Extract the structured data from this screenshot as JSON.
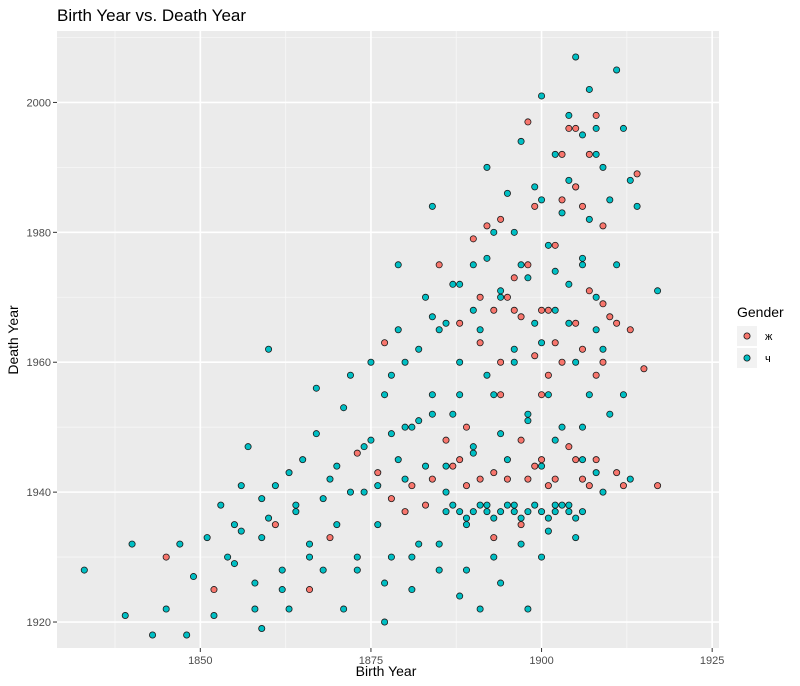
{
  "chart_data": {
    "type": "scatter",
    "title": "Birth Year vs. Death Year",
    "xlabel": "Birth Year",
    "ylabel": "Death Year",
    "xlim": [
      1829,
      1926
    ],
    "ylim": [
      1916,
      2011
    ],
    "x_ticks": [
      1850,
      1875,
      1900,
      1925
    ],
    "y_ticks": [
      1920,
      1940,
      1960,
      1980,
      2000
    ],
    "grid": true,
    "legend": {
      "title": "Gender",
      "placement": "right",
      "entries": [
        {
          "label": "ж",
          "color": "#F8766D"
        },
        {
          "label": "ч",
          "color": "#00BFC4"
        }
      ]
    },
    "series": [
      {
        "name": "ж",
        "color": "#F8766D",
        "points": [
          [
            1845,
            1930
          ],
          [
            1852,
            1925
          ],
          [
            1861,
            1935
          ],
          [
            1866,
            1925
          ],
          [
            1869,
            1933
          ],
          [
            1873,
            1946
          ],
          [
            1876,
            1943
          ],
          [
            1877,
            1963
          ],
          [
            1878,
            1939
          ],
          [
            1880,
            1937
          ],
          [
            1881,
            1941
          ],
          [
            1883,
            1938
          ],
          [
            1884,
            1942
          ],
          [
            1885,
            1975
          ],
          [
            1886,
            1948
          ],
          [
            1887,
            1944
          ],
          [
            1888,
            1966
          ],
          [
            1889,
            1941
          ],
          [
            1889,
            1950
          ],
          [
            1890,
            1979
          ],
          [
            1891,
            1963
          ],
          [
            1891,
            1942
          ],
          [
            1892,
            1981
          ],
          [
            1893,
            1968
          ],
          [
            1893,
            1943
          ],
          [
            1894,
            1982
          ],
          [
            1894,
            1955
          ],
          [
            1895,
            1942
          ],
          [
            1895,
            1970
          ],
          [
            1896,
            1973
          ],
          [
            1897,
            1967
          ],
          [
            1897,
            1935
          ],
          [
            1897,
            1948
          ],
          [
            1898,
            1997
          ],
          [
            1898,
            1942
          ],
          [
            1898,
            1975
          ],
          [
            1899,
            1961
          ],
          [
            1899,
            1984
          ],
          [
            1900,
            1955
          ],
          [
            1900,
            1968
          ],
          [
            1900,
            1945
          ],
          [
            1901,
            1968
          ],
          [
            1901,
            1941
          ],
          [
            1902,
            1978
          ],
          [
            1902,
            1942
          ],
          [
            1903,
            1985
          ],
          [
            1903,
            1960
          ],
          [
            1904,
            1996
          ],
          [
            1904,
            1947
          ],
          [
            1905,
            1987
          ],
          [
            1905,
            1966
          ],
          [
            1905,
            1945
          ],
          [
            1906,
            1984
          ],
          [
            1906,
            1962
          ],
          [
            1907,
            1992
          ],
          [
            1907,
            1971
          ],
          [
            1907,
            1941
          ],
          [
            1908,
            1998
          ],
          [
            1908,
            1958
          ],
          [
            1908,
            1945
          ],
          [
            1909,
            1981
          ],
          [
            1909,
            1969
          ],
          [
            1910,
            1967
          ],
          [
            1912,
            1941
          ],
          [
            1913,
            1965
          ],
          [
            1914,
            1989
          ],
          [
            1915,
            1959
          ],
          [
            1917,
            1941
          ],
          [
            1909,
            1960
          ],
          [
            1911,
            1943
          ],
          [
            1906,
            1942
          ],
          [
            1902,
            1963
          ],
          [
            1896,
            1968
          ],
          [
            1891,
            1970
          ],
          [
            1894,
            1960
          ],
          [
            1899,
            1944
          ],
          [
            1903,
            1992
          ],
          [
            1905,
            1996
          ],
          [
            1911,
            1966
          ],
          [
            1901,
            1958
          ],
          [
            1888,
            1945
          ],
          [
            1893,
            1933
          ]
        ]
      },
      {
        "name": "ч",
        "color": "#00BFC4",
        "points": [
          [
            1833,
            1928
          ],
          [
            1839,
            1921
          ],
          [
            1840,
            1932
          ],
          [
            1843,
            1918
          ],
          [
            1845,
            1922
          ],
          [
            1847,
            1932
          ],
          [
            1848,
            1918
          ],
          [
            1849,
            1927
          ],
          [
            1851,
            1933
          ],
          [
            1852,
            1921
          ],
          [
            1853,
            1938
          ],
          [
            1854,
            1930
          ],
          [
            1855,
            1935
          ],
          [
            1856,
            1941
          ],
          [
            1857,
            1947
          ],
          [
            1858,
            1926
          ],
          [
            1859,
            1933
          ],
          [
            1859,
            1919
          ],
          [
            1860,
            1962
          ],
          [
            1861,
            1941
          ],
          [
            1862,
            1928
          ],
          [
            1863,
            1922
          ],
          [
            1864,
            1938
          ],
          [
            1865,
            1945
          ],
          [
            1866,
            1932
          ],
          [
            1867,
            1956
          ],
          [
            1868,
            1928
          ],
          [
            1869,
            1942
          ],
          [
            1870,
            1935
          ],
          [
            1871,
            1922
          ],
          [
            1872,
            1958
          ],
          [
            1873,
            1930
          ],
          [
            1874,
            1940
          ],
          [
            1875,
            1948
          ],
          [
            1876,
            1935
          ],
          [
            1877,
            1955
          ],
          [
            1877,
            1920
          ],
          [
            1878,
            1930
          ],
          [
            1879,
            1975
          ],
          [
            1879,
            1945
          ],
          [
            1880,
            1960
          ],
          [
            1881,
            1925
          ],
          [
            1881,
            1950
          ],
          [
            1882,
            1932
          ],
          [
            1883,
            1970
          ],
          [
            1883,
            1944
          ],
          [
            1884,
            1984
          ],
          [
            1884,
            1955
          ],
          [
            1885,
            1928
          ],
          [
            1885,
            1965
          ],
          [
            1886,
            1940
          ],
          [
            1887,
            1972
          ],
          [
            1887,
            1952
          ],
          [
            1888,
            1924
          ],
          [
            1888,
            1960
          ],
          [
            1889,
            1935
          ],
          [
            1890,
            1975
          ],
          [
            1890,
            1946
          ],
          [
            1891,
            1922
          ],
          [
            1891,
            1965
          ],
          [
            1892,
            1938
          ],
          [
            1892,
            1990
          ],
          [
            1893,
            1955
          ],
          [
            1893,
            1980
          ],
          [
            1894,
            1926
          ],
          [
            1894,
            1970
          ],
          [
            1895,
            1945
          ],
          [
            1895,
            1986
          ],
          [
            1896,
            1962
          ],
          [
            1896,
            1938
          ],
          [
            1897,
            1994
          ],
          [
            1897,
            1975
          ],
          [
            1898,
            1952
          ],
          [
            1898,
            1922
          ],
          [
            1899,
            1987
          ],
          [
            1899,
            1966
          ],
          [
            1900,
            2001
          ],
          [
            1900,
            1944
          ],
          [
            1900,
            1930
          ],
          [
            1901,
            1978
          ],
          [
            1901,
            1955
          ],
          [
            1902,
            1992
          ],
          [
            1902,
            1968
          ],
          [
            1902,
            1938
          ],
          [
            1903,
            1983
          ],
          [
            1903,
            1950
          ],
          [
            1904,
            1998
          ],
          [
            1904,
            1972
          ],
          [
            1904,
            1938
          ],
          [
            1905,
            2007
          ],
          [
            1905,
            1987
          ],
          [
            1905,
            1960
          ],
          [
            1906,
            1995
          ],
          [
            1906,
            1975
          ],
          [
            1906,
            1945
          ],
          [
            1907,
            2002
          ],
          [
            1907,
            1982
          ],
          [
            1907,
            1955
          ],
          [
            1908,
            1996
          ],
          [
            1908,
            1970
          ],
          [
            1908,
            1943
          ],
          [
            1909,
            1990
          ],
          [
            1909,
            1962
          ],
          [
            1910,
            1985
          ],
          [
            1910,
            1952
          ],
          [
            1911,
            2005
          ],
          [
            1911,
            1975
          ],
          [
            1912,
            1996
          ],
          [
            1912,
            1955
          ],
          [
            1913,
            1988
          ],
          [
            1913,
            1942
          ],
          [
            1914,
            1984
          ],
          [
            1917,
            1971
          ],
          [
            1886,
            1937
          ],
          [
            1888,
            1937
          ],
          [
            1890,
            1937
          ],
          [
            1892,
            1937
          ],
          [
            1894,
            1937
          ],
          [
            1896,
            1937
          ],
          [
            1898,
            1937
          ],
          [
            1900,
            1937
          ],
          [
            1902,
            1937
          ],
          [
            1904,
            1937
          ],
          [
            1906,
            1937
          ],
          [
            1887,
            1938
          ],
          [
            1891,
            1938
          ],
          [
            1895,
            1938
          ],
          [
            1899,
            1938
          ],
          [
            1903,
            1938
          ],
          [
            1889,
            1936
          ],
          [
            1893,
            1936
          ],
          [
            1897,
            1936
          ],
          [
            1901,
            1936
          ],
          [
            1905,
            1936
          ],
          [
            1880,
            1942
          ],
          [
            1876,
            1941
          ],
          [
            1872,
            1940
          ],
          [
            1868,
            1939
          ],
          [
            1864,
            1937
          ],
          [
            1860,
            1936
          ],
          [
            1856,
            1934
          ],
          [
            1878,
            1958
          ],
          [
            1882,
            1962
          ],
          [
            1886,
            1966
          ],
          [
            1890,
            1968
          ],
          [
            1894,
            1971
          ],
          [
            1898,
            1973
          ],
          [
            1902,
            1974
          ],
          [
            1906,
            1976
          ],
          [
            1880,
            1950
          ],
          [
            1884,
            1952
          ],
          [
            1888,
            1955
          ],
          [
            1892,
            1958
          ],
          [
            1896,
            1960
          ],
          [
            1900,
            1963
          ],
          [
            1904,
            1966
          ],
          [
            1908,
            1965
          ],
          [
            1870,
            1944
          ],
          [
            1874,
            1947
          ],
          [
            1878,
            1949
          ],
          [
            1882,
            1951
          ],
          [
            1886,
            1944
          ],
          [
            1890,
            1947
          ],
          [
            1894,
            1949
          ],
          [
            1898,
            1951
          ],
          [
            1902,
            1948
          ],
          [
            1906,
            1950
          ],
          [
            1866,
            1930
          ],
          [
            1862,
            1925
          ],
          [
            1858,
            1922
          ],
          [
            1873,
            1928
          ],
          [
            1877,
            1926
          ],
          [
            1881,
            1930
          ],
          [
            1885,
            1932
          ],
          [
            1889,
            1928
          ],
          [
            1893,
            1930
          ],
          [
            1897,
            1932
          ],
          [
            1901,
            1934
          ],
          [
            1905,
            1933
          ],
          [
            1909,
            1940
          ],
          [
            1896,
            1980
          ],
          [
            1900,
            1985
          ],
          [
            1904,
            1988
          ],
          [
            1908,
            1992
          ],
          [
            1892,
            1976
          ],
          [
            1888,
            1972
          ],
          [
            1884,
            1967
          ],
          [
            1879,
            1965
          ],
          [
            1875,
            1960
          ],
          [
            1871,
            1953
          ],
          [
            1867,
            1949
          ],
          [
            1863,
            1943
          ],
          [
            1859,
            1939
          ],
          [
            1855,
            1929
          ]
        ]
      }
    ]
  }
}
